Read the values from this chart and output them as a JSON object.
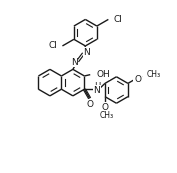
{
  "bg_color": "#ffffff",
  "line_color": "#1a1a1a",
  "line_width": 1.0,
  "font_size": 6.5,
  "figsize": [
    1.77,
    1.73
  ],
  "dpi": 100,
  "xlim": [
    -0.5,
    10.5
  ],
  "ylim": [
    -0.5,
    10.5
  ]
}
